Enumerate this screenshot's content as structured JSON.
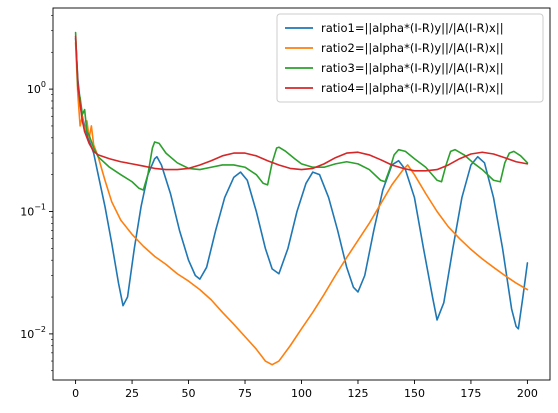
{
  "chart_data": {
    "type": "line",
    "title": "",
    "xlabel": "",
    "ylabel": "",
    "yscale": "log",
    "xlim": [
      -10,
      210
    ],
    "ylim": [
      0.0042,
      4.6
    ],
    "grid": false,
    "legend_position": "top-right",
    "x_ticks": [
      {
        "value": 0,
        "label": "0"
      },
      {
        "value": 25,
        "label": "25"
      },
      {
        "value": 50,
        "label": "50"
      },
      {
        "value": 75,
        "label": "75"
      },
      {
        "value": 100,
        "label": "100"
      },
      {
        "value": 125,
        "label": "125"
      },
      {
        "value": 150,
        "label": "150"
      },
      {
        "value": 175,
        "label": "175"
      },
      {
        "value": 200,
        "label": "200"
      }
    ],
    "y_ticks": [
      {
        "value": 0.01,
        "label": "10",
        "exp": "−2"
      },
      {
        "value": 0.1,
        "label": "10",
        "exp": "−1"
      },
      {
        "value": 1,
        "label": "10",
        "exp": "0"
      }
    ],
    "series": [
      {
        "name": "ratio1=||alpha*(I-R)y||/|A(I-R)x||",
        "color": "#1f77b4",
        "points": [
          [
            0,
            2.6
          ],
          [
            1,
            1.2
          ],
          [
            2,
            0.8
          ],
          [
            3,
            0.6
          ],
          [
            4,
            0.5
          ],
          [
            6,
            0.38
          ],
          [
            8,
            0.3
          ],
          [
            10,
            0.2
          ],
          [
            13,
            0.11
          ],
          [
            16,
            0.055
          ],
          [
            19,
            0.026
          ],
          [
            21,
            0.017
          ],
          [
            23,
            0.02
          ],
          [
            26,
            0.05
          ],
          [
            29,
            0.11
          ],
          [
            32,
            0.2
          ],
          [
            35,
            0.27
          ],
          [
            36,
            0.28
          ],
          [
            38,
            0.24
          ],
          [
            42,
            0.14
          ],
          [
            46,
            0.07
          ],
          [
            50,
            0.04
          ],
          [
            53,
            0.03
          ],
          [
            55,
            0.028
          ],
          [
            58,
            0.035
          ],
          [
            62,
            0.07
          ],
          [
            66,
            0.13
          ],
          [
            70,
            0.19
          ],
          [
            73,
            0.21
          ],
          [
            76,
            0.18
          ],
          [
            80,
            0.1
          ],
          [
            84,
            0.05
          ],
          [
            87,
            0.034
          ],
          [
            90,
            0.031
          ],
          [
            94,
            0.05
          ],
          [
            98,
            0.1
          ],
          [
            102,
            0.17
          ],
          [
            105,
            0.21
          ],
          [
            108,
            0.2
          ],
          [
            112,
            0.13
          ],
          [
            116,
            0.07
          ],
          [
            120,
            0.035
          ],
          [
            123,
            0.024
          ],
          [
            125,
            0.022
          ],
          [
            128,
            0.03
          ],
          [
            132,
            0.07
          ],
          [
            136,
            0.15
          ],
          [
            140,
            0.24
          ],
          [
            143,
            0.26
          ],
          [
            146,
            0.22
          ],
          [
            150,
            0.13
          ],
          [
            154,
            0.05
          ],
          [
            158,
            0.02
          ],
          [
            160,
            0.013
          ],
          [
            163,
            0.018
          ],
          [
            167,
            0.05
          ],
          [
            171,
            0.13
          ],
          [
            175,
            0.24
          ],
          [
            178,
            0.28
          ],
          [
            181,
            0.25
          ],
          [
            185,
            0.13
          ],
          [
            189,
            0.05
          ],
          [
            193,
            0.016
          ],
          [
            195,
            0.0115
          ],
          [
            196,
            0.011
          ],
          [
            198,
            0.02
          ],
          [
            200,
            0.038
          ]
        ]
      },
      {
        "name": "ratio2=||alpha*(I-R)y||/|A(I-R)x||",
        "color": "#ff7f0e",
        "points": [
          [
            0,
            2.4
          ],
          [
            1,
            0.9
          ],
          [
            2,
            0.5
          ],
          [
            3,
            0.6
          ],
          [
            4,
            0.45
          ],
          [
            5,
            0.55
          ],
          [
            6,
            0.4
          ],
          [
            7,
            0.5
          ],
          [
            8,
            0.35
          ],
          [
            10,
            0.28
          ],
          [
            13,
            0.18
          ],
          [
            16,
            0.12
          ],
          [
            20,
            0.085
          ],
          [
            25,
            0.065
          ],
          [
            30,
            0.052
          ],
          [
            35,
            0.043
          ],
          [
            40,
            0.037
          ],
          [
            45,
            0.031
          ],
          [
            50,
            0.027
          ],
          [
            55,
            0.023
          ],
          [
            60,
            0.019
          ],
          [
            65,
            0.015
          ],
          [
            70,
            0.012
          ],
          [
            75,
            0.0095
          ],
          [
            80,
            0.0075
          ],
          [
            84,
            0.006
          ],
          [
            87,
            0.0056
          ],
          [
            90,
            0.006
          ],
          [
            95,
            0.008
          ],
          [
            100,
            0.011
          ],
          [
            105,
            0.015
          ],
          [
            110,
            0.021
          ],
          [
            115,
            0.03
          ],
          [
            120,
            0.042
          ],
          [
            125,
            0.058
          ],
          [
            130,
            0.08
          ],
          [
            135,
            0.115
          ],
          [
            140,
            0.165
          ],
          [
            145,
            0.22
          ],
          [
            147,
            0.24
          ],
          [
            150,
            0.2
          ],
          [
            155,
            0.14
          ],
          [
            160,
            0.1
          ],
          [
            165,
            0.075
          ],
          [
            170,
            0.06
          ],
          [
            175,
            0.049
          ],
          [
            180,
            0.041
          ],
          [
            185,
            0.035
          ],
          [
            190,
            0.03
          ],
          [
            195,
            0.026
          ],
          [
            200,
            0.023
          ]
        ]
      },
      {
        "name": "ratio3=||alpha*(I-R)y||/|A(I-R)x||",
        "color": "#2ca02c",
        "points": [
          [
            0,
            2.9
          ],
          [
            1,
            1.0
          ],
          [
            2,
            0.85
          ],
          [
            3,
            0.62
          ],
          [
            4,
            0.68
          ],
          [
            5,
            0.45
          ],
          [
            6,
            0.42
          ],
          [
            8,
            0.33
          ],
          [
            10,
            0.28
          ],
          [
            15,
            0.23
          ],
          [
            20,
            0.2
          ],
          [
            25,
            0.175
          ],
          [
            28,
            0.155
          ],
          [
            30,
            0.15
          ],
          [
            32,
            0.2
          ],
          [
            34,
            0.33
          ],
          [
            35,
            0.37
          ],
          [
            37,
            0.36
          ],
          [
            40,
            0.3
          ],
          [
            45,
            0.25
          ],
          [
            50,
            0.225
          ],
          [
            55,
            0.22
          ],
          [
            60,
            0.23
          ],
          [
            65,
            0.24
          ],
          [
            70,
            0.24
          ],
          [
            75,
            0.23
          ],
          [
            80,
            0.2
          ],
          [
            83,
            0.17
          ],
          [
            85,
            0.165
          ],
          [
            87,
            0.25
          ],
          [
            89,
            0.33
          ],
          [
            90,
            0.335
          ],
          [
            93,
            0.31
          ],
          [
            97,
            0.27
          ],
          [
            100,
            0.245
          ],
          [
            105,
            0.23
          ],
          [
            110,
            0.23
          ],
          [
            115,
            0.245
          ],
          [
            120,
            0.255
          ],
          [
            125,
            0.245
          ],
          [
            130,
            0.22
          ],
          [
            135,
            0.18
          ],
          [
            137,
            0.175
          ],
          [
            139,
            0.22
          ],
          [
            141,
            0.29
          ],
          [
            143,
            0.32
          ],
          [
            146,
            0.31
          ],
          [
            150,
            0.27
          ],
          [
            155,
            0.23
          ],
          [
            160,
            0.18
          ],
          [
            162,
            0.175
          ],
          [
            164,
            0.24
          ],
          [
            166,
            0.31
          ],
          [
            168,
            0.32
          ],
          [
            172,
            0.29
          ],
          [
            176,
            0.25
          ],
          [
            180,
            0.22
          ],
          [
            185,
            0.18
          ],
          [
            188,
            0.175
          ],
          [
            190,
            0.25
          ],
          [
            192,
            0.3
          ],
          [
            194,
            0.31
          ],
          [
            197,
            0.285
          ],
          [
            200,
            0.25
          ]
        ]
      },
      {
        "name": "ratio4=||alpha*(I-R)y||/|A(I-R)x||",
        "color": "#d62728",
        "points": [
          [
            0,
            2.7
          ],
          [
            1,
            1.1
          ],
          [
            2,
            0.75
          ],
          [
            3,
            0.55
          ],
          [
            4,
            0.45
          ],
          [
            6,
            0.36
          ],
          [
            8,
            0.31
          ],
          [
            10,
            0.29
          ],
          [
            15,
            0.27
          ],
          [
            20,
            0.255
          ],
          [
            25,
            0.245
          ],
          [
            30,
            0.235
          ],
          [
            35,
            0.225
          ],
          [
            40,
            0.22
          ],
          [
            45,
            0.22
          ],
          [
            50,
            0.225
          ],
          [
            55,
            0.24
          ],
          [
            60,
            0.26
          ],
          [
            65,
            0.285
          ],
          [
            70,
            0.3
          ],
          [
            75,
            0.3
          ],
          [
            80,
            0.285
          ],
          [
            85,
            0.26
          ],
          [
            90,
            0.24
          ],
          [
            95,
            0.225
          ],
          [
            100,
            0.22
          ],
          [
            105,
            0.225
          ],
          [
            110,
            0.245
          ],
          [
            115,
            0.275
          ],
          [
            120,
            0.3
          ],
          [
            125,
            0.305
          ],
          [
            130,
            0.29
          ],
          [
            135,
            0.265
          ],
          [
            140,
            0.24
          ],
          [
            145,
            0.225
          ],
          [
            150,
            0.215
          ],
          [
            155,
            0.215
          ],
          [
            160,
            0.22
          ],
          [
            165,
            0.24
          ],
          [
            170,
            0.27
          ],
          [
            175,
            0.295
          ],
          [
            180,
            0.305
          ],
          [
            185,
            0.295
          ],
          [
            190,
            0.275
          ],
          [
            195,
            0.255
          ],
          [
            200,
            0.245
          ]
        ]
      }
    ]
  }
}
